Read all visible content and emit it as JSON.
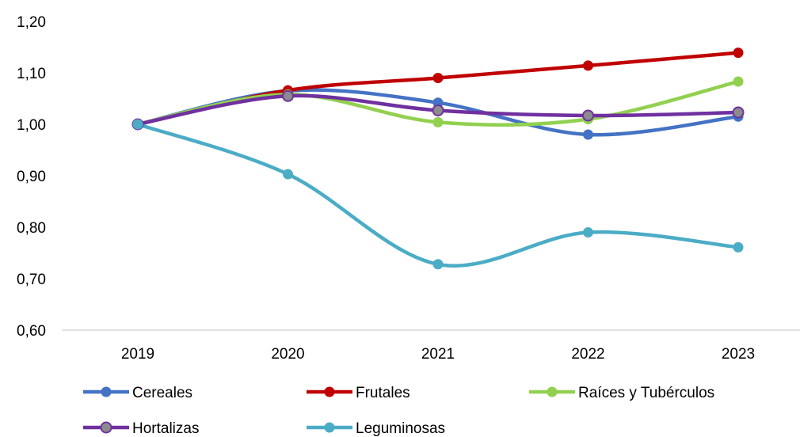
{
  "chart_data": {
    "type": "line",
    "categories": [
      "2019",
      "2020",
      "2021",
      "2022",
      "2023"
    ],
    "ylim": [
      0.6,
      1.2
    ],
    "yticks": [
      0.6,
      0.7,
      0.8,
      0.9,
      1.0,
      1.1,
      1.2
    ],
    "ytick_labels": [
      "0,60",
      "0,70",
      "0,80",
      "0,90",
      "1,00",
      "1,10",
      "1,20"
    ],
    "grid": false,
    "legend_position": "bottom",
    "smooth": true,
    "series": [
      {
        "name": "Cereales",
        "color": "#4472c4",
        "values": [
          1.0,
          1.065,
          1.042,
          0.98,
          1.015
        ]
      },
      {
        "name": "Frutales",
        "color": "#c00000",
        "values": [
          1.0,
          1.066,
          1.09,
          1.114,
          1.139
        ]
      },
      {
        "name": "Raíces y Tubérculos",
        "color": "#92d050",
        "values": [
          1.0,
          1.058,
          1.004,
          1.01,
          1.083
        ]
      },
      {
        "name": "Hortalizas",
        "color": "#7030a0",
        "values": [
          1.0,
          1.055,
          1.027,
          1.017,
          1.023
        ]
      },
      {
        "name": "Leguminosas",
        "color": "#4bacc6",
        "values": [
          1.0,
          0.903,
          0.728,
          0.79,
          0.761
        ]
      }
    ]
  }
}
